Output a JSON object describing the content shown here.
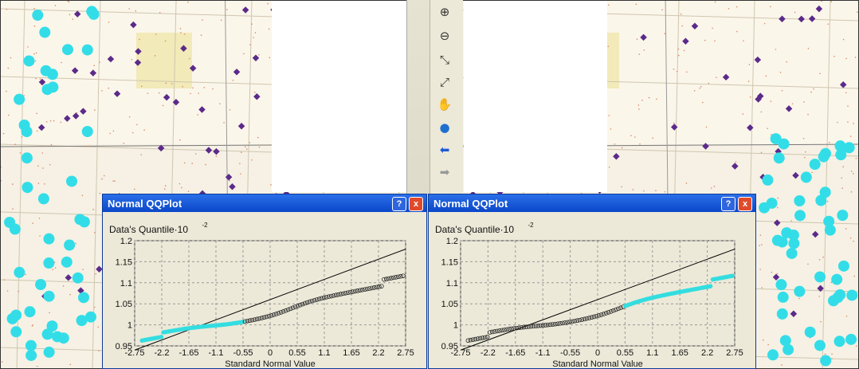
{
  "toolbar": {
    "buttons": [
      {
        "icon": "zoom-in-icon",
        "glyph": "⊕"
      },
      {
        "icon": "zoom-out-icon",
        "glyph": "⊖"
      },
      {
        "icon": "fixed-zoom-in-icon",
        "glyph": "⤡"
      },
      {
        "icon": "fixed-zoom-out-icon",
        "glyph": "⤢"
      },
      {
        "icon": "pan-hand-icon",
        "glyph": "✋"
      },
      {
        "icon": "full-extent-globe-icon",
        "glyph": "●"
      },
      {
        "icon": "back-arrow-icon",
        "glyph": "⬅"
      },
      {
        "icon": "forward-arrow-icon",
        "glyph": "➡"
      }
    ]
  },
  "dialogs": [
    {
      "title": "Normal QQPlot",
      "help_label": "?",
      "close_label": "x",
      "ylabel": "Data's Quantile",
      "yscale": "10",
      "yscale_exp": "-2",
      "xlabel": "Standard Normal Value",
      "highlight": "left-tail",
      "highlight_color": "#33dde0",
      "point_color": "#222222"
    },
    {
      "title": "Normal QQPlot",
      "help_label": "?",
      "close_label": "x",
      "ylabel": "Data's Quantile",
      "yscale": "10",
      "yscale_exp": "-2",
      "xlabel": "Standard Normal Value",
      "highlight": "right-tail",
      "highlight_color": "#33dde0",
      "point_color": "#222222"
    }
  ],
  "chart_data": [
    {
      "type": "scatter",
      "title": "Normal QQPlot",
      "xlabel": "Standard Normal Value",
      "ylabel": "Data's Quantile · 10^-2",
      "xlim": [
        -2.75,
        2.75
      ],
      "ylim": [
        0.95,
        1.2
      ],
      "x_ticks": [
        "-2.75",
        "-2.2",
        "-1.65",
        "-1.1",
        "-0.55",
        "0",
        "0.55",
        "1.1",
        "1.65",
        "2.2",
        "2.75"
      ],
      "y_ticks": [
        "0.95",
        "1",
        "1.05",
        "1.1",
        "1.15",
        "1.2"
      ],
      "grid": true,
      "reference_line": {
        "x": [
          -2.75,
          2.75
        ],
        "y": [
          0.94,
          1.18
        ]
      },
      "highlighted_range_x": [
        -2.75,
        -0.55
      ]
    },
    {
      "type": "scatter",
      "title": "Normal QQPlot",
      "xlabel": "Standard Normal Value",
      "ylabel": "Data's Quantile · 10^-2",
      "xlim": [
        -2.75,
        2.75
      ],
      "ylim": [
        0.95,
        1.2
      ],
      "x_ticks": [
        "-2.75",
        "-2.2",
        "-1.65",
        "-1.1",
        "-0.55",
        "0",
        "0.55",
        "1.1",
        "1.65",
        "2.2",
        "2.75"
      ],
      "y_ticks": [
        "0.95",
        "1",
        "1.05",
        "1.1",
        "1.15",
        "1.2"
      ],
      "grid": true,
      "reference_line": {
        "x": [
          -2.75,
          2.75
        ],
        "y": [
          0.94,
          1.18
        ]
      },
      "highlighted_range_x": [
        0.55,
        2.75
      ]
    }
  ]
}
